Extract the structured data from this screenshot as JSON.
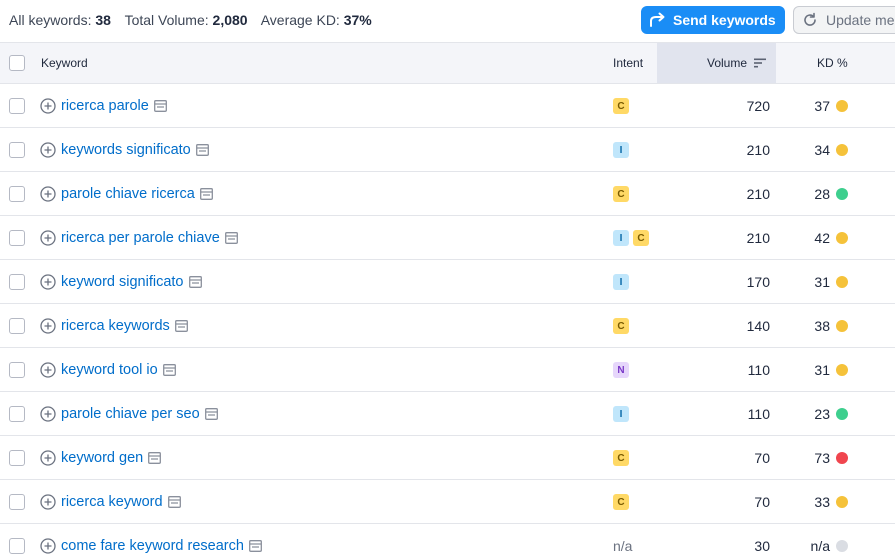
{
  "summary": {
    "all_keywords_label": "All keywords:",
    "all_keywords_value": "38",
    "total_volume_label": "Total Volume:",
    "total_volume_value": "2,080",
    "avg_kd_label": "Average KD:",
    "avg_kd_value": "37%"
  },
  "toolbar": {
    "send_label": "Send keywords",
    "update_label": "Update me"
  },
  "columns": {
    "keyword": "Keyword",
    "intent": "Intent",
    "volume": "Volume",
    "kd": "KD %"
  },
  "colors": {
    "accent": "#1a8df6",
    "link": "#006dca",
    "kd_yellow": "#f5c23a",
    "kd_green": "#3ecf8e",
    "kd_red": "#f0454e",
    "kd_gray": "#dadde3"
  },
  "rows": [
    {
      "keyword": "ricerca parole",
      "intents": [
        "C"
      ],
      "volume": "720",
      "kd": "37",
      "kd_color": "#f5c23a"
    },
    {
      "keyword": "keywords significato",
      "intents": [
        "I"
      ],
      "volume": "210",
      "kd": "34",
      "kd_color": "#f5c23a"
    },
    {
      "keyword": "parole chiave ricerca",
      "intents": [
        "C"
      ],
      "volume": "210",
      "kd": "28",
      "kd_color": "#3ecf8e"
    },
    {
      "keyword": "ricerca per parole chiave",
      "intents": [
        "I",
        "C"
      ],
      "volume": "210",
      "kd": "42",
      "kd_color": "#f5c23a"
    },
    {
      "keyword": "keyword significato",
      "intents": [
        "I"
      ],
      "volume": "170",
      "kd": "31",
      "kd_color": "#f5c23a"
    },
    {
      "keyword": "ricerca keywords",
      "intents": [
        "C"
      ],
      "volume": "140",
      "kd": "38",
      "kd_color": "#f5c23a"
    },
    {
      "keyword": "keyword tool io",
      "intents": [
        "N"
      ],
      "volume": "110",
      "kd": "31",
      "kd_color": "#f5c23a"
    },
    {
      "keyword": "parole chiave per seo",
      "intents": [
        "I"
      ],
      "volume": "110",
      "kd": "23",
      "kd_color": "#3ecf8e"
    },
    {
      "keyword": "keyword gen",
      "intents": [
        "C"
      ],
      "volume": "70",
      "kd": "73",
      "kd_color": "#f0454e"
    },
    {
      "keyword": "ricerca keyword",
      "intents": [
        "C"
      ],
      "volume": "70",
      "kd": "33",
      "kd_color": "#f5c23a"
    },
    {
      "keyword": "come fare keyword research",
      "intents": [],
      "intent_text": "n/a",
      "volume": "30",
      "kd": "n/a",
      "kd_color": "#dadde3"
    }
  ]
}
